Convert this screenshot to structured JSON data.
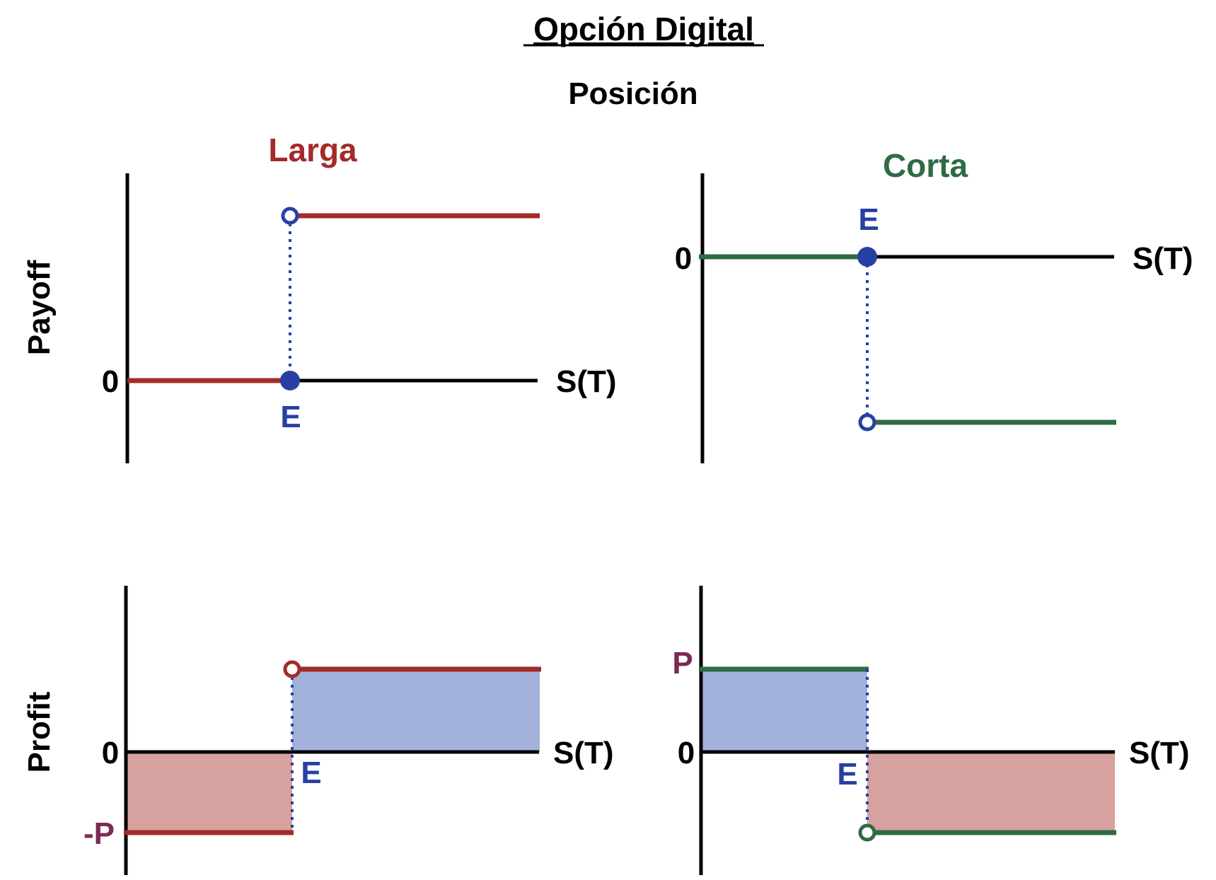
{
  "title": "Opción Digital",
  "subtitle": "Posición",
  "columns": {
    "long": "Larga",
    "short": "Corta"
  },
  "rows": {
    "payoff": "Payoff",
    "profit": "Profit"
  },
  "labels": {
    "zero": "0",
    "strike": "E",
    "axis": "S(T)",
    "premium": "P",
    "neg_premium": "-P"
  },
  "colors": {
    "long": "#a32b2a",
    "short": "#2f6b44",
    "strike": "#2840a3",
    "premium": "#7a2a55",
    "gain_fill": "#a3b2db",
    "loss_fill": "#d6a19f",
    "axis": "#000000"
  }
}
